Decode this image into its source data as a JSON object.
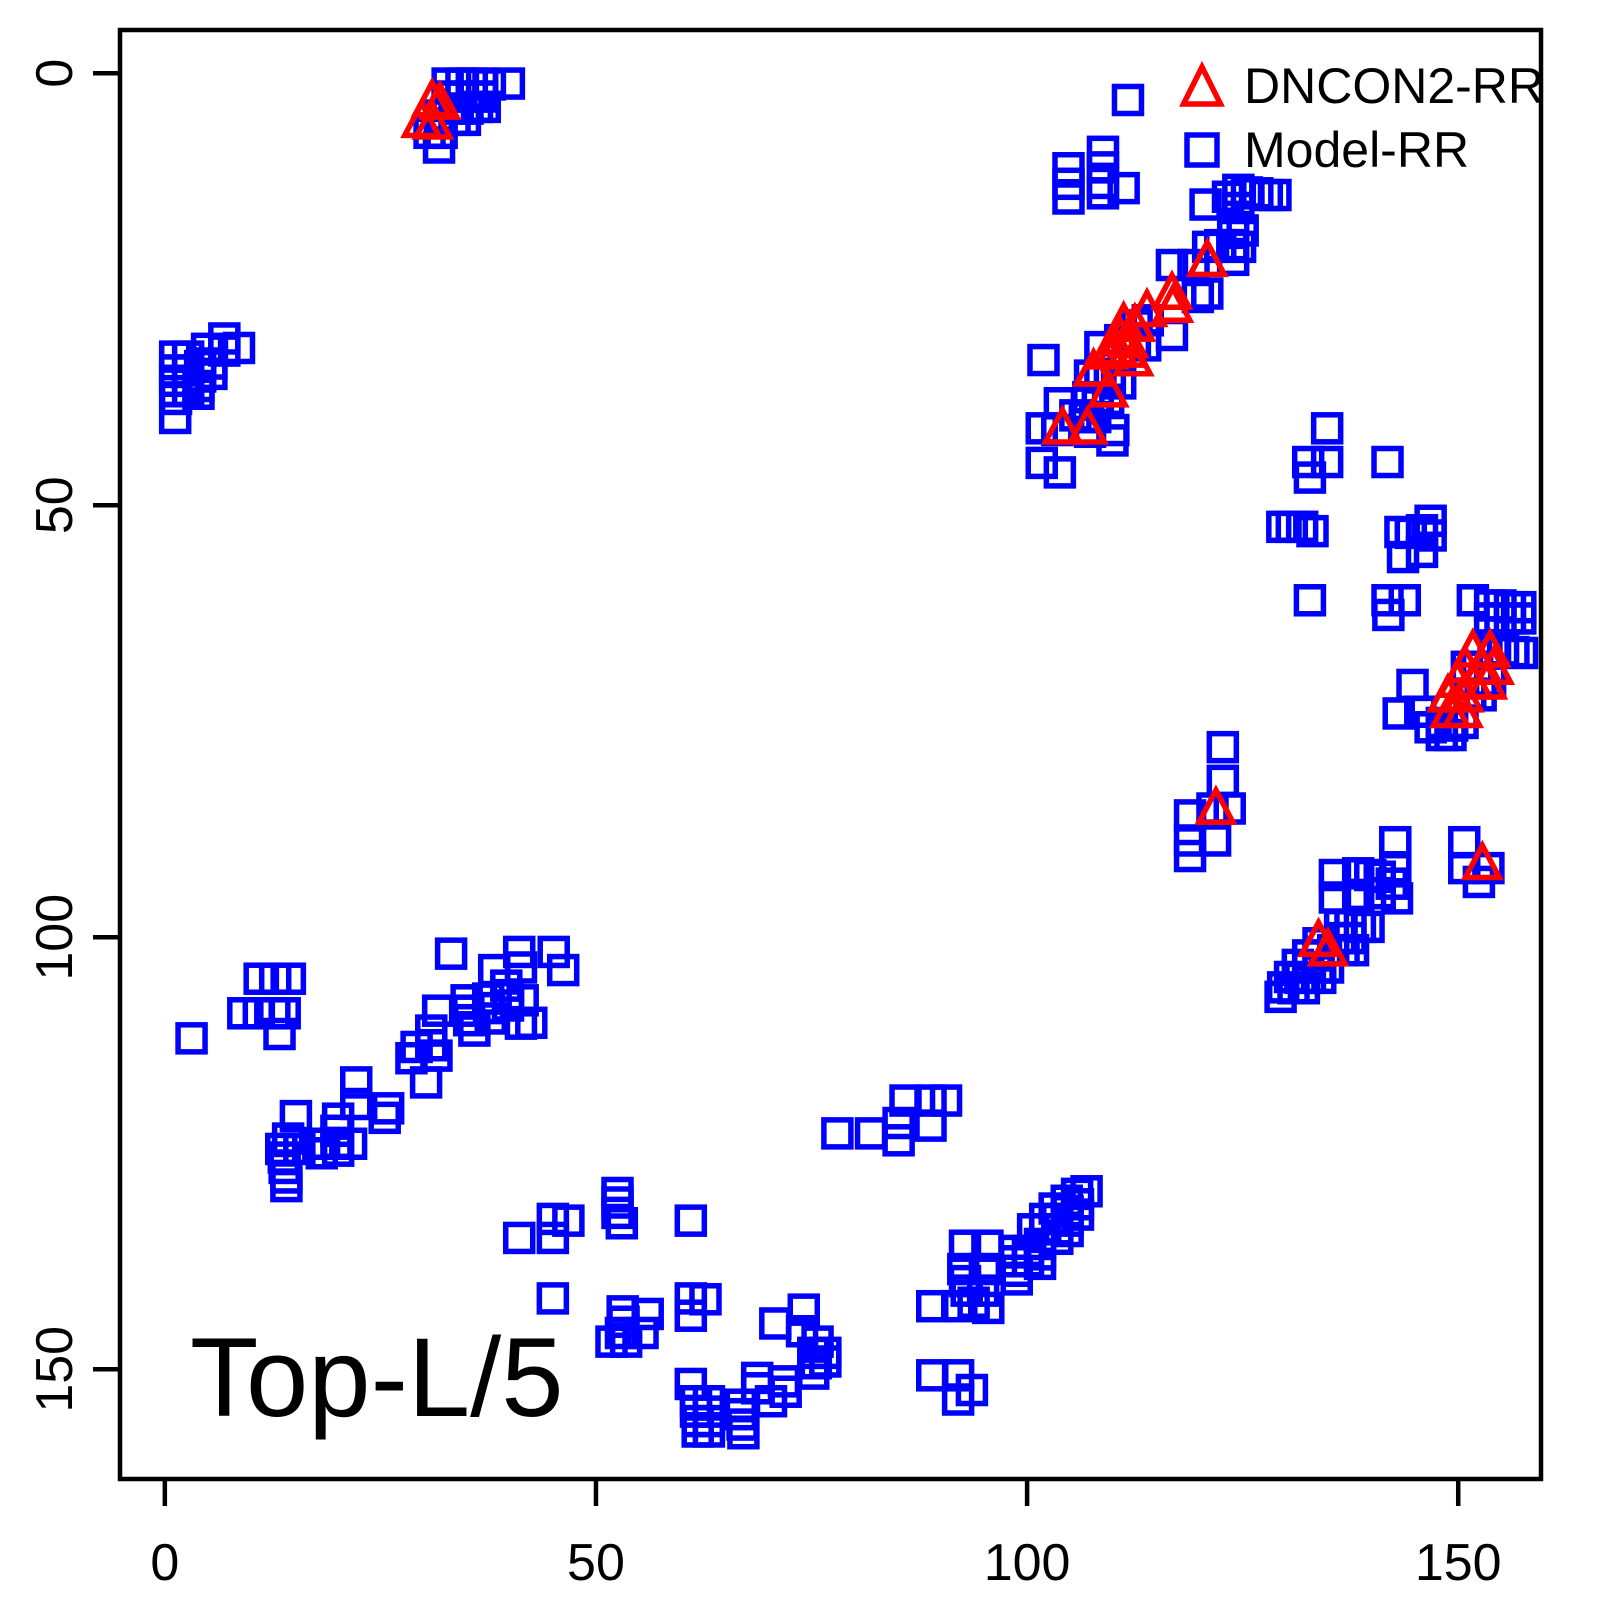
{
  "chart_data": {
    "type": "scatter",
    "title": "",
    "xlabel": "",
    "ylabel": "",
    "annotation": {
      "text": "Top-L/5"
    },
    "xlim": [
      -5.2,
      159.6
    ],
    "ylim": [
      -5.0,
      162.7
    ],
    "y_axis_reversed": true,
    "x_ticks": [
      0,
      50,
      100,
      150
    ],
    "y_ticks": [
      0,
      50,
      100,
      150
    ],
    "grid": false,
    "legend_position": "top-right-inside",
    "axis_color": "#000000",
    "legend": [
      {
        "label": "DNCON2-RR",
        "marker": "triangle",
        "color": "#ff0000"
      },
      {
        "label": "Model-RR",
        "marker": "square",
        "color": "#0000ff"
      }
    ],
    "series": [
      {
        "name": "Model-RR",
        "marker": "square",
        "color": "#0000ff",
        "mirror_across_diagonal": true,
        "points": [
          [
            32.8,
            1.2
          ],
          [
            34.4,
            1.2
          ],
          [
            35.6,
            1.2
          ],
          [
            36.8,
            1.2
          ],
          [
            37.7,
            1.3
          ],
          [
            39.9,
            1.2
          ],
          [
            32.8,
            2.7
          ],
          [
            34.4,
            2.7
          ],
          [
            35.6,
            2.7
          ],
          [
            36.8,
            2.7
          ],
          [
            33.9,
            4.1
          ],
          [
            35.1,
            4.1
          ],
          [
            36.2,
            3.9
          ],
          [
            37.1,
            3.9
          ],
          [
            31.9,
            4.9
          ],
          [
            33.6,
            5.4
          ],
          [
            34.8,
            5.4
          ],
          [
            30.7,
            6.9
          ],
          [
            32.1,
            6.9
          ],
          [
            31.8,
            8.6
          ],
          [
            111.7,
            3.1
          ],
          [
            104.8,
            11.0
          ],
          [
            104.8,
            12.8
          ],
          [
            104.8,
            14.5
          ],
          [
            108.8,
            9.1
          ],
          [
            108.8,
            10.9
          ],
          [
            108.8,
            12.7
          ],
          [
            108.8,
            13.9
          ],
          [
            111.2,
            13.3
          ],
          [
            120.7,
            15.2
          ],
          [
            123.3,
            14.3
          ],
          [
            124.5,
            13.5
          ],
          [
            125.5,
            13.8
          ],
          [
            126.7,
            13.9
          ],
          [
            127.8,
            14.1
          ],
          [
            128.8,
            14.1
          ],
          [
            124.5,
            15.6
          ],
          [
            123.9,
            17.8
          ],
          [
            125.0,
            18.2
          ],
          [
            121.0,
            20.1
          ],
          [
            122.4,
            19.9
          ],
          [
            123.8,
            19.9
          ],
          [
            124.7,
            20.1
          ],
          [
            123.9,
            21.6
          ],
          [
            116.8,
            22.2
          ],
          [
            119.3,
            22.2
          ],
          [
            120.9,
            25.5
          ],
          [
            119.8,
            25.9
          ],
          [
            101.9,
            33.2
          ],
          [
            108.5,
            31.7
          ],
          [
            110.8,
            30.9
          ],
          [
            112.7,
            29.2
          ],
          [
            114.0,
            28.6
          ],
          [
            116.8,
            30.3
          ],
          [
            112.5,
            30.9
          ],
          [
            113.7,
            31.5
          ],
          [
            107.3,
            35.0
          ],
          [
            108.5,
            35.2
          ],
          [
            109.6,
            35.3
          ],
          [
            110.8,
            35.9
          ],
          [
            107.1,
            37.5
          ],
          [
            108.2,
            37.6
          ],
          [
            109.4,
            37.8
          ],
          [
            103.8,
            38.2
          ],
          [
            105.6,
            39.6
          ],
          [
            106.7,
            39.8
          ],
          [
            107.9,
            39.8
          ],
          [
            110.0,
            41.3
          ],
          [
            101.7,
            41.1
          ],
          [
            103.5,
            41.3
          ],
          [
            107.3,
            41.5
          ],
          [
            109.9,
            42.5
          ],
          [
            101.7,
            45.1
          ],
          [
            103.8,
            46.2
          ],
          [
            134.8,
            41.1
          ],
          [
            132.6,
            45.0
          ],
          [
            134.8,
            45.0
          ],
          [
            132.8,
            46.8
          ],
          [
            141.8,
            45.0
          ],
          [
            129.6,
            52.5
          ],
          [
            130.7,
            52.5
          ],
          [
            131.9,
            52.5
          ],
          [
            133.1,
            53.0
          ],
          [
            143.3,
            53.1
          ],
          [
            144.5,
            53.2
          ],
          [
            145.8,
            52.9
          ],
          [
            146.8,
            51.8
          ],
          [
            146.8,
            53.5
          ],
          [
            143.6,
            56.0
          ],
          [
            145.8,
            55.4
          ],
          [
            132.8,
            61.0
          ],
          [
            141.8,
            61.0
          ],
          [
            143.8,
            61.0
          ],
          [
            141.9,
            62.7
          ],
          [
            151.7,
            61.0
          ],
          [
            153.7,
            61.6
          ],
          [
            154.9,
            61.6
          ],
          [
            156.0,
            61.8
          ],
          [
            157.2,
            61.8
          ],
          [
            153.7,
            63.1
          ],
          [
            154.9,
            63.1
          ],
          [
            156.0,
            63.1
          ],
          [
            157.2,
            63.1
          ],
          [
            154.1,
            66.8
          ],
          [
            155.2,
            66.8
          ],
          [
            156.4,
            67.0
          ],
          [
            157.4,
            67.1
          ],
          [
            144.7,
            70.8
          ],
          [
            143.1,
            74.1
          ],
          [
            145.6,
            73.9
          ],
          [
            148.1,
            75.2
          ],
          [
            149.3,
            75.5
          ],
          [
            150.5,
            75.2
          ],
          [
            151.4,
            71.8
          ],
          [
            152.6,
            72.0
          ],
          [
            151.0,
            68.7
          ],
          [
            152.2,
            68.7
          ],
          [
            153.7,
            70.3
          ],
          [
            146.8,
            75.7
          ],
          [
            148.1,
            76.6
          ],
          [
            149.1,
            76.6
          ],
          [
            122.7,
            78.0
          ],
          [
            122.7,
            81.9
          ],
          [
            121.5,
            85.1
          ],
          [
            123.5,
            85.1
          ],
          [
            118.9,
            85.9
          ],
          [
            118.9,
            88.8
          ],
          [
            118.9,
            90.6
          ],
          [
            121.8,
            88.8
          ],
          [
            150.7,
            89.0
          ],
          [
            150.7,
            92.0
          ],
          [
            153.5,
            92.0
          ],
          [
            152.4,
            93.6
          ],
          [
            142.7,
            89.0
          ],
          [
            142.7,
            91.9
          ],
          [
            142.3,
            93.8
          ],
          [
            142.9,
            95.5
          ],
          [
            135.7,
            92.8
          ],
          [
            138.4,
            92.6
          ],
          [
            139.8,
            92.8
          ],
          [
            140.9,
            93.0
          ],
          [
            135.7,
            95.4
          ],
          [
            138.4,
            95.1
          ],
          [
            140.9,
            94.9
          ],
          [
            136.3,
            98.6
          ],
          [
            137.5,
            98.6
          ],
          [
            138.6,
            98.8
          ],
          [
            139.6,
            98.8
          ],
          [
            136.3,
            100.1
          ],
          [
            137.5,
            100.1
          ],
          [
            135.5,
            101.5
          ],
          [
            136.7,
            101.5
          ],
          [
            137.8,
            101.5
          ],
          [
            133.8,
            100.7
          ],
          [
            132.6,
            102.1
          ],
          [
            133.8,
            102.1
          ],
          [
            131.4,
            103.2
          ],
          [
            132.6,
            103.5
          ],
          [
            133.8,
            103.5
          ],
          [
            134.9,
            103.5
          ],
          [
            130.5,
            104.6
          ],
          [
            131.7,
            104.7
          ],
          [
            132.8,
            104.7
          ],
          [
            134.0,
            104.7
          ],
          [
            129.7,
            105.8
          ],
          [
            130.9,
            105.9
          ],
          [
            132.1,
            105.9
          ],
          [
            129.4,
            106.9
          ]
        ]
      },
      {
        "name": "DNCON2-RR",
        "marker": "triangle",
        "color": "#ff0000",
        "mirror_across_diagonal": false,
        "points": [
          [
            31.0,
            3.4
          ],
          [
            31.9,
            3.7
          ],
          [
            29.8,
            5.8
          ],
          [
            31.1,
            6.0
          ],
          [
            120.9,
            21.9
          ],
          [
            116.8,
            25.7
          ],
          [
            113.9,
            27.7
          ],
          [
            116.9,
            27.2
          ],
          [
            111.2,
            29.2
          ],
          [
            112.5,
            29.4
          ],
          [
            110.8,
            30.9
          ],
          [
            111.7,
            31.3
          ],
          [
            110.4,
            32.1
          ],
          [
            111.6,
            32.4
          ],
          [
            109.4,
            32.6
          ],
          [
            112.3,
            33.4
          ],
          [
            107.7,
            34.6
          ],
          [
            109.4,
            37.0
          ],
          [
            104.1,
            41.3
          ],
          [
            107.0,
            41.3
          ],
          [
            151.7,
            67.1
          ],
          [
            153.7,
            67.1
          ],
          [
            150.8,
            68.9
          ],
          [
            152.8,
            69.1
          ],
          [
            154.1,
            69.1
          ],
          [
            149.9,
            70.6
          ],
          [
            151.7,
            70.8
          ],
          [
            153.3,
            70.8
          ],
          [
            148.8,
            72.3
          ],
          [
            150.6,
            72.3
          ],
          [
            149.1,
            74.1
          ],
          [
            150.5,
            74.1
          ],
          [
            121.9,
            85.3
          ],
          [
            152.8,
            91.7
          ],
          [
            133.8,
            100.6
          ],
          [
            134.9,
            101.7
          ]
        ]
      }
    ]
  }
}
